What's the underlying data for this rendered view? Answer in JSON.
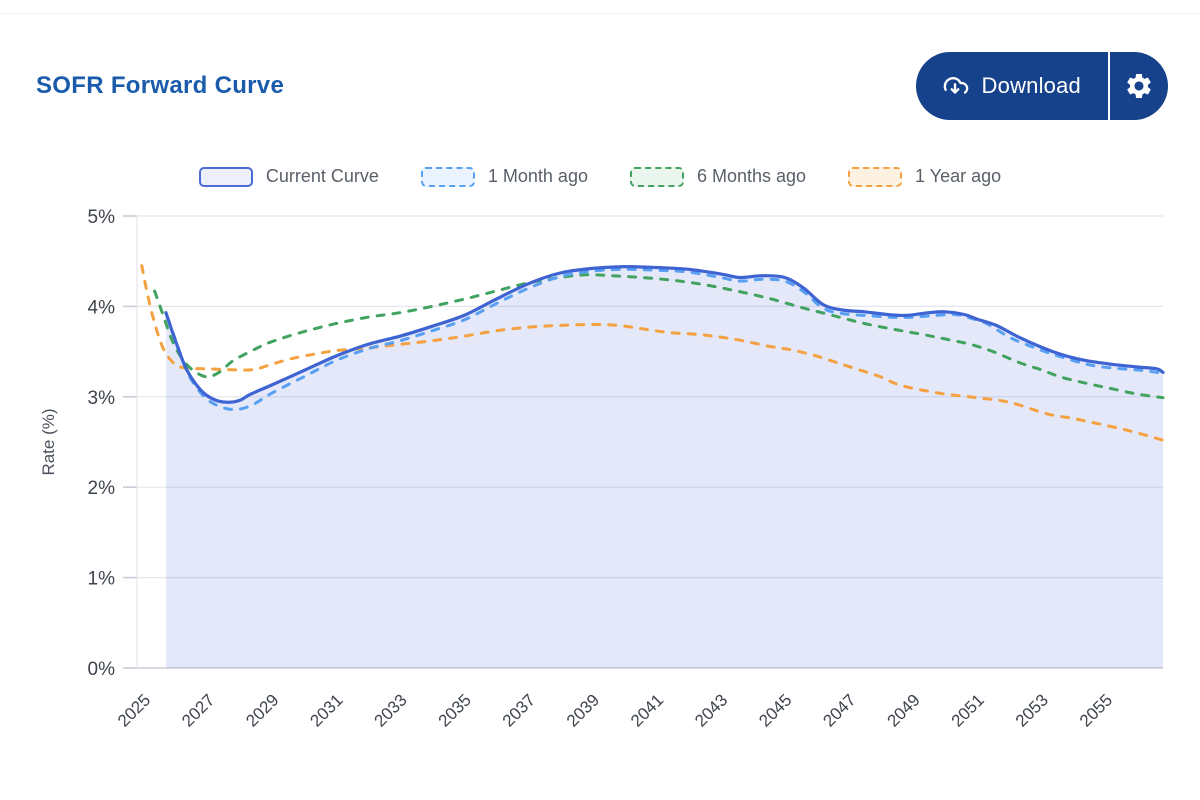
{
  "header": {
    "title": "SOFR Forward Curve",
    "download_label": "Download",
    "download_icon": "cloud-download-icon",
    "settings_icon": "gear-icon",
    "button_color": "#16418b",
    "title_color": "#1a5cab"
  },
  "legend": [
    {
      "label": "Current Curve",
      "style": "solid",
      "color": "#4a6bd8",
      "fill": "#edf0fa"
    },
    {
      "label": "1 Month ago",
      "style": "dashed",
      "color": "#57a0f3",
      "fill": "#eaf3fe"
    },
    {
      "label": "6 Months ago",
      "style": "dashed",
      "color": "#41a35f",
      "fill": "#eaf5ee"
    },
    {
      "label": "1 Year ago",
      "style": "dashed",
      "color": "#f5a142",
      "fill": "#fdf1e2"
    }
  ],
  "chart_data": {
    "type": "line",
    "title": "SOFR Forward Curve",
    "xlabel": "",
    "ylabel": "Rate (%)",
    "ylim": [
      0,
      5
    ],
    "xlim": [
      2024.8,
      2056.8
    ],
    "y_ticks": [
      "0%",
      "1%",
      "2%",
      "3%",
      "4%",
      "5%"
    ],
    "x_ticks": [
      2025,
      2027,
      2029,
      2031,
      2033,
      2035,
      2037,
      2039,
      2041,
      2043,
      2045,
      2047,
      2049,
      2051,
      2053,
      2055
    ],
    "grid": "horizontal-only",
    "legend_position": "top-center",
    "series": [
      {
        "name": "Current Curve",
        "style": "solid",
        "color": "#3e63d2",
        "area": true,
        "area_fill": "rgba(76,104,213,0.15)",
        "points": [
          [
            2025.7,
            3.93
          ],
          [
            2026.0,
            3.62
          ],
          [
            2026.35,
            3.3
          ],
          [
            2026.8,
            3.07
          ],
          [
            2027.2,
            2.97
          ],
          [
            2027.6,
            2.94
          ],
          [
            2028.0,
            2.96
          ],
          [
            2028.35,
            3.03
          ],
          [
            2029,
            3.13
          ],
          [
            2030,
            3.29
          ],
          [
            2031,
            3.45
          ],
          [
            2032,
            3.58
          ],
          [
            2033,
            3.67
          ],
          [
            2034,
            3.78
          ],
          [
            2035,
            3.9
          ],
          [
            2036,
            4.08
          ],
          [
            2037,
            4.25
          ],
          [
            2038,
            4.37
          ],
          [
            2039,
            4.42
          ],
          [
            2040,
            4.44
          ],
          [
            2041,
            4.43
          ],
          [
            2042,
            4.41
          ],
          [
            2043,
            4.36
          ],
          [
            2043.6,
            4.32
          ],
          [
            2044.3,
            4.34
          ],
          [
            2045,
            4.32
          ],
          [
            2045.6,
            4.2
          ],
          [
            2046.2,
            4.02
          ],
          [
            2046.8,
            3.96
          ],
          [
            2047.5,
            3.94
          ],
          [
            2048.2,
            3.91
          ],
          [
            2048.8,
            3.9
          ],
          [
            2049.5,
            3.93
          ],
          [
            2050,
            3.94
          ],
          [
            2050.6,
            3.91
          ],
          [
            2051,
            3.86
          ],
          [
            2051.6,
            3.79
          ],
          [
            2052.3,
            3.66
          ],
          [
            2053,
            3.55
          ],
          [
            2053.7,
            3.46
          ],
          [
            2054.4,
            3.4
          ],
          [
            2055.2,
            3.36
          ],
          [
            2056,
            3.33
          ],
          [
            2056.6,
            3.31
          ],
          [
            2056.8,
            3.27
          ]
        ]
      },
      {
        "name": "1 Month ago",
        "style": "dashed",
        "color": "#57a0f3",
        "area": false,
        "points": [
          [
            2025.75,
            3.88
          ],
          [
            2026.05,
            3.58
          ],
          [
            2026.4,
            3.25
          ],
          [
            2026.9,
            3.0
          ],
          [
            2027.4,
            2.89
          ],
          [
            2027.9,
            2.86
          ],
          [
            2028.4,
            2.91
          ],
          [
            2029,
            3.04
          ],
          [
            2030,
            3.22
          ],
          [
            2031,
            3.4
          ],
          [
            2032,
            3.53
          ],
          [
            2033,
            3.62
          ],
          [
            2034,
            3.73
          ],
          [
            2035,
            3.85
          ],
          [
            2036,
            4.03
          ],
          [
            2037,
            4.2
          ],
          [
            2038,
            4.33
          ],
          [
            2039,
            4.39
          ],
          [
            2040,
            4.41
          ],
          [
            2041,
            4.4
          ],
          [
            2042,
            4.38
          ],
          [
            2043,
            4.32
          ],
          [
            2043.6,
            4.28
          ],
          [
            2044.3,
            4.3
          ],
          [
            2045,
            4.28
          ],
          [
            2045.6,
            4.16
          ],
          [
            2046.2,
            3.98
          ],
          [
            2046.8,
            3.92
          ],
          [
            2047.5,
            3.9
          ],
          [
            2048.3,
            3.88
          ],
          [
            2049,
            3.88
          ],
          [
            2049.7,
            3.9
          ],
          [
            2050.3,
            3.91
          ],
          [
            2050.8,
            3.87
          ],
          [
            2051.3,
            3.81
          ],
          [
            2052,
            3.66
          ],
          [
            2052.6,
            3.57
          ],
          [
            2053.2,
            3.49
          ],
          [
            2054,
            3.4
          ],
          [
            2054.7,
            3.34
          ],
          [
            2055.5,
            3.31
          ],
          [
            2056.2,
            3.29
          ],
          [
            2056.8,
            3.26
          ]
        ]
      },
      {
        "name": "6 Months ago",
        "style": "dashed",
        "color": "#41a35f",
        "area": false,
        "points": [
          [
            2025.35,
            4.17
          ],
          [
            2025.6,
            3.92
          ],
          [
            2025.9,
            3.62
          ],
          [
            2026.25,
            3.4
          ],
          [
            2026.6,
            3.28
          ],
          [
            2027,
            3.22
          ],
          [
            2027.4,
            3.28
          ],
          [
            2027.8,
            3.4
          ],
          [
            2028.5,
            3.53
          ],
          [
            2029,
            3.61
          ],
          [
            2030,
            3.72
          ],
          [
            2031,
            3.81
          ],
          [
            2032,
            3.88
          ],
          [
            2033,
            3.93
          ],
          [
            2034,
            4.0
          ],
          [
            2035,
            4.08
          ],
          [
            2036,
            4.17
          ],
          [
            2037,
            4.26
          ],
          [
            2038,
            4.32
          ],
          [
            2038.8,
            4.35
          ],
          [
            2039.6,
            4.34
          ],
          [
            2040.5,
            4.32
          ],
          [
            2041.5,
            4.29
          ],
          [
            2042.5,
            4.24
          ],
          [
            2043.5,
            4.17
          ],
          [
            2044.5,
            4.09
          ],
          [
            2045.5,
            3.99
          ],
          [
            2046.5,
            3.9
          ],
          [
            2047.5,
            3.81
          ],
          [
            2048.5,
            3.74
          ],
          [
            2049.3,
            3.69
          ],
          [
            2050,
            3.64
          ],
          [
            2050.8,
            3.58
          ],
          [
            2051.5,
            3.5
          ],
          [
            2052.3,
            3.38
          ],
          [
            2053,
            3.3
          ],
          [
            2053.6,
            3.22
          ],
          [
            2054.4,
            3.15
          ],
          [
            2055.2,
            3.09
          ],
          [
            2056,
            3.03
          ],
          [
            2056.8,
            2.99
          ]
        ]
      },
      {
        "name": "1 Year ago",
        "style": "dashed",
        "color": "#f5a142",
        "area": false,
        "points": [
          [
            2024.95,
            4.45
          ],
          [
            2025.1,
            4.18
          ],
          [
            2025.3,
            3.88
          ],
          [
            2025.6,
            3.55
          ],
          [
            2025.95,
            3.37
          ],
          [
            2026.3,
            3.32
          ],
          [
            2027,
            3.31
          ],
          [
            2027.7,
            3.3
          ],
          [
            2028.4,
            3.3
          ],
          [
            2029,
            3.36
          ],
          [
            2029.6,
            3.42
          ],
          [
            2030.3,
            3.47
          ],
          [
            2031,
            3.51
          ],
          [
            2032,
            3.54
          ],
          [
            2033,
            3.58
          ],
          [
            2034,
            3.62
          ],
          [
            2035,
            3.67
          ],
          [
            2036,
            3.73
          ],
          [
            2037,
            3.77
          ],
          [
            2038,
            3.79
          ],
          [
            2039,
            3.8
          ],
          [
            2039.8,
            3.79
          ],
          [
            2040.6,
            3.75
          ],
          [
            2041.4,
            3.71
          ],
          [
            2042.3,
            3.69
          ],
          [
            2043,
            3.66
          ],
          [
            2043.7,
            3.62
          ],
          [
            2044.5,
            3.56
          ],
          [
            2045.2,
            3.52
          ],
          [
            2046,
            3.45
          ],
          [
            2046.7,
            3.37
          ],
          [
            2047.4,
            3.29
          ],
          [
            2048,
            3.22
          ],
          [
            2048.5,
            3.14
          ],
          [
            2049.2,
            3.08
          ],
          [
            2050,
            3.03
          ],
          [
            2051,
            2.99
          ],
          [
            2052,
            2.94
          ],
          [
            2053.2,
            2.81
          ],
          [
            2054,
            2.76
          ],
          [
            2054.8,
            2.7
          ],
          [
            2055.8,
            2.62
          ],
          [
            2056.8,
            2.52
          ]
        ]
      }
    ]
  }
}
